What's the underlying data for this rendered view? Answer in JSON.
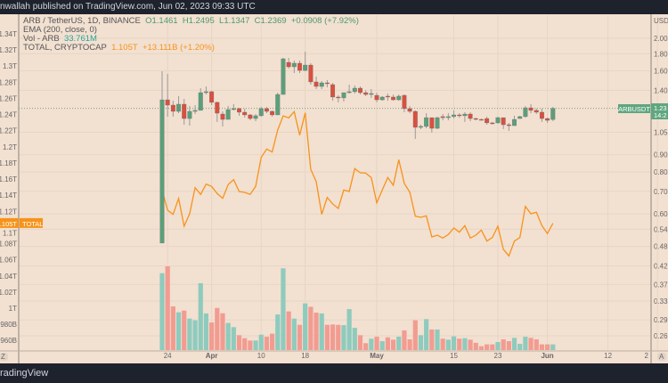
{
  "topbar": {
    "text": "nwallah published on TradingView.com, Jun 02, 2023 09:33 UTC"
  },
  "footer": {
    "logo": "radingView"
  },
  "legend": {
    "symbol": "ARB / TetherUS, 1D, BINANCE",
    "o": "O1.1461",
    "h": "H1.2495",
    "l": "L1.1347",
    "c": "C1.2369",
    "chg": "+0.0908 (+7.92%)",
    "ema": "EMA (200, close, 0)",
    "vol_label": "Vol - ARB",
    "vol_value": "33.761M",
    "total_label": "TOTAL, CRYPTOCAP",
    "total_value": "1.105T",
    "total_chg": "+13.111B (+1.20%)"
  },
  "tags": {
    "arb": "ARBUSDT",
    "arb_price": "1.23",
    "arb_time": "14:2",
    "total": "TOTAL",
    "total_price": "1.105T",
    "usd": "USD",
    "left_corner": "Z",
    "right_corner": "A"
  },
  "colors": {
    "up": "#5b9f7a",
    "down": "#d9503f",
    "vol_up": "#8ecbbd",
    "vol_down": "#f29c91",
    "total": "#f7931a",
    "bg": "#f2e0d1"
  },
  "chart_data": {
    "type": "candlestick",
    "title": "ARB / TetherUS, 1D, BINANCE",
    "x_start": "2023-03-23",
    "interval": "1D",
    "x_ticks": [
      "24",
      "Apr",
      "10",
      "18",
      "May",
      "15",
      "23",
      "Jun",
      "12",
      "2"
    ],
    "right_axis_ticks": [
      "2.00",
      "1.80",
      "1.60",
      "1.40",
      "1.05",
      "0.90",
      "0.80",
      "0.70",
      "0.60",
      "0.54",
      "0.48",
      "0.42",
      "0.37",
      "0.33",
      "0.29",
      "0.26"
    ],
    "left_axis_ticks": [
      "1.34T",
      "1.32T",
      "1.3T",
      "1.28T",
      "1.26T",
      "1.24T",
      "1.22T",
      "1.2T",
      "1.18T",
      "1.16T",
      "1.14T",
      "1.12T",
      "1.1T",
      "1.08T",
      "1.06T",
      "1.04T",
      "1.02T",
      "1T",
      "980B",
      "960B"
    ],
    "right_scale": "log",
    "left_scale": "linear",
    "ohlc": [
      [
        0.491,
        1.596,
        0.491,
        1.312
      ],
      [
        1.312,
        1.567,
        1.169,
        1.265
      ],
      [
        1.265,
        1.304,
        1.169,
        1.212
      ],
      [
        1.212,
        1.345,
        1.197,
        1.273
      ],
      [
        1.273,
        1.32,
        1.106,
        1.154
      ],
      [
        1.154,
        1.257,
        1.099,
        1.212
      ],
      [
        1.212,
        1.265,
        1.19,
        1.22
      ],
      [
        1.22,
        1.421,
        1.22,
        1.378
      ],
      [
        1.378,
        1.438,
        1.361,
        1.387
      ],
      [
        1.387,
        1.395,
        1.265,
        1.289
      ],
      [
        1.289,
        1.296,
        1.127,
        1.197
      ],
      [
        1.19,
        1.212,
        1.093,
        1.147
      ],
      [
        1.147,
        1.257,
        1.147,
        1.227
      ],
      [
        1.227,
        1.273,
        1.22,
        1.235
      ],
      [
        1.235,
        1.242,
        1.176,
        1.205
      ],
      [
        1.205,
        1.235,
        1.161,
        1.183
      ],
      [
        1.183,
        1.19,
        1.14,
        1.154
      ],
      [
        1.154,
        1.19,
        1.133,
        1.176
      ],
      [
        1.176,
        1.25,
        1.169,
        1.235
      ],
      [
        1.235,
        1.25,
        1.197,
        1.212
      ],
      [
        1.212,
        1.22,
        1.169,
        1.183
      ],
      [
        1.183,
        1.378,
        1.183,
        1.361
      ],
      [
        1.361,
        1.749,
        1.361,
        1.738
      ],
      [
        1.696,
        1.749,
        1.625,
        1.645
      ],
      [
        1.645,
        1.717,
        1.576,
        1.686
      ],
      [
        1.686,
        1.717,
        1.576,
        1.605
      ],
      [
        1.605,
        1.825,
        1.596,
        1.665
      ],
      [
        1.665,
        1.686,
        1.456,
        1.483
      ],
      [
        1.483,
        1.538,
        1.412,
        1.438
      ],
      [
        1.438,
        1.492,
        1.412,
        1.474
      ],
      [
        1.474,
        1.501,
        1.43,
        1.465
      ],
      [
        1.456,
        1.474,
        1.304,
        1.337
      ],
      [
        1.337,
        1.353,
        1.289,
        1.329
      ],
      [
        1.329,
        1.378,
        1.296,
        1.378
      ],
      [
        1.378,
        1.456,
        1.37,
        1.387
      ],
      [
        1.387,
        1.447,
        1.37,
        1.421
      ],
      [
        1.421,
        1.438,
        1.361,
        1.378
      ],
      [
        1.378,
        1.4,
        1.345,
        1.361
      ],
      [
        1.361,
        1.412,
        1.329,
        1.37
      ],
      [
        1.353,
        1.378,
        1.289,
        1.312
      ],
      [
        1.312,
        1.345,
        1.304,
        1.337
      ],
      [
        1.345,
        1.37,
        1.304,
        1.337
      ],
      [
        1.337,
        1.361,
        1.304,
        1.312
      ],
      [
        1.312,
        1.361,
        1.304,
        1.345
      ],
      [
        1.353,
        1.361,
        1.205,
        1.235
      ],
      [
        1.235,
        1.257,
        1.197,
        1.212
      ],
      [
        1.212,
        1.22,
        1.003,
        1.086
      ],
      [
        1.086,
        1.106,
        1.073,
        1.093
      ],
      [
        1.093,
        1.197,
        1.079,
        1.161
      ],
      [
        1.161,
        1.161,
        1.047,
        1.079
      ],
      [
        1.079,
        1.169,
        1.073,
        1.161
      ],
      [
        1.169,
        1.19,
        1.14,
        1.161
      ],
      [
        1.161,
        1.197,
        1.14,
        1.169
      ],
      [
        1.169,
        1.22,
        1.154,
        1.183
      ],
      [
        1.183,
        1.197,
        1.161,
        1.176
      ],
      [
        1.176,
        1.205,
        1.127,
        1.19
      ],
      [
        1.19,
        1.205,
        1.133,
        1.154
      ],
      [
        1.154,
        1.161,
        1.14,
        1.147
      ],
      [
        1.147,
        1.154,
        1.14,
        1.143
      ],
      [
        1.154,
        1.169,
        1.106,
        1.12
      ],
      [
        1.12,
        1.127,
        1.106,
        1.116
      ],
      [
        1.12,
        1.169,
        1.113,
        1.161
      ],
      [
        1.161,
        1.161,
        1.073,
        1.106
      ],
      [
        1.106,
        1.12,
        1.06,
        1.099
      ],
      [
        1.099,
        1.176,
        1.099,
        1.147
      ],
      [
        1.154,
        1.176,
        1.154,
        1.169
      ],
      [
        1.169,
        1.257,
        1.161,
        1.242
      ],
      [
        1.242,
        1.273,
        1.197,
        1.22
      ],
      [
        1.22,
        1.235,
        1.19,
        1.205
      ],
      [
        1.205,
        1.235,
        1.127,
        1.154
      ],
      [
        1.154,
        1.161,
        1.12,
        1.14
      ],
      [
        1.1461,
        1.2495,
        1.1347,
        1.2369
      ]
    ],
    "volume_m": [
      460,
      501,
      261,
      226,
      236,
      188,
      178,
      400,
      219,
      165,
      252,
      220,
      162,
      137,
      89,
      71,
      57,
      57,
      92,
      80,
      98,
      213,
      489,
      231,
      188,
      151,
      279,
      259,
      224,
      219,
      151,
      153,
      151,
      149,
      245,
      133,
      89,
      41,
      68,
      80,
      53,
      76,
      62,
      80,
      117,
      64,
      178,
      89,
      185,
      123,
      123,
      68,
      62,
      82,
      68,
      71,
      62,
      43,
      23,
      34,
      34,
      48,
      64,
      53,
      73,
      37,
      80,
      73,
      64,
      34,
      34,
      33.761
    ],
    "total_t": [
      1.1465,
      1.1214,
      1.1163,
      1.1361,
      1.1016,
      1.117,
      1.1494,
      1.141,
      1.1538,
      1.1509,
      1.1421,
      1.1361,
      1.1531,
      1.1593,
      1.1446,
      1.1435,
      1.141,
      1.1509,
      1.1869,
      1.1972,
      1.1935,
      1.2208,
      1.2384,
      1.2359,
      1.2436,
      1.2145,
      1.2421,
      1.1722,
      1.1568,
      1.1163,
      1.1372,
      1.1292,
      1.1236,
      1.1465,
      1.1446,
      1.173,
      1.1678,
      1.1674,
      1.1619,
      1.1306,
      1.1465,
      1.1619,
      1.1523,
      1.184,
      1.1546,
      1.1438,
      1.1141,
      1.1126,
      1.1145,
      1.0883,
      1.0905,
      1.0869,
      1.0913,
      1.0994,
      1.0942,
      1.1023,
      1.0869,
      1.0905,
      1.0968,
      1.0831,
      1.0876,
      1.1016,
      1.0729,
      1.0648,
      1.0831,
      1.0876,
      1.1262,
      1.117,
      1.1189,
      1.1023,
      1.0924,
      1.1052
    ],
    "current_price": 1.2369
  }
}
